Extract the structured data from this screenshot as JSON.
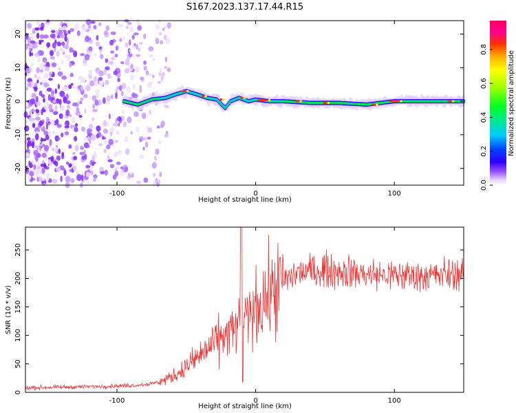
{
  "title": "S167.2023.137.17.44.R15",
  "chart_data": [
    {
      "type": "heatmap",
      "xlabel": "Height of straight line (km)",
      "ylabel": "Frequency (Hz)",
      "xlim": [
        -166,
        150
      ],
      "ylim": [
        -25,
        24
      ],
      "xticks": [
        -100,
        0,
        100
      ],
      "yticks": [
        -20,
        -10,
        0,
        10,
        20
      ],
      "colorbar": {
        "label": "Normalized spectral amplitude",
        "range": [
          0,
          0.97
        ],
        "ticks": [
          "0.0",
          "0.2",
          "0.4",
          "0.6",
          "0.8"
        ],
        "colormap": "gist_ncar",
        "colors": [
          "#ffffff",
          "#f3e9ff",
          "#d9b8ff",
          "#a060ff",
          "#6000e0",
          "#0000ff",
          "#00c0ff",
          "#00e0a0",
          "#00ff00",
          "#a0ff00",
          "#ffff00",
          "#ffa000",
          "#ff2000",
          "#ff00a0",
          "#ff0060"
        ]
      },
      "ridge": {
        "description_free_values": true,
        "x": [
          -95,
          -85,
          -75,
          -65,
          -58,
          -50,
          -42,
          -35,
          -28,
          -22,
          -18,
          -12,
          -5,
          0,
          10,
          20,
          40,
          60,
          80,
          100,
          120,
          150
        ],
        "freq": [
          0,
          -1,
          0.5,
          1,
          2,
          3,
          2,
          1,
          0.5,
          -2,
          0,
          1,
          0,
          0.5,
          0,
          0,
          -0.5,
          -0.5,
          -1,
          0,
          0,
          0
        ]
      },
      "noise_region_x": [
        -166,
        -70
      ]
    },
    {
      "type": "line",
      "xlabel": "Height of straight line (km)",
      "ylabel": "SNR (10 * v/v)",
      "xlim": [
        -166,
        150
      ],
      "ylim": [
        0,
        290
      ],
      "xticks": [
        -100,
        0,
        100
      ],
      "yticks": [
        0,
        50,
        100,
        150,
        200,
        250
      ],
      "color": "#ee3333",
      "trend": {
        "x": [
          -166,
          -120,
          -90,
          -75,
          -65,
          -55,
          -45,
          -35,
          -25,
          -15,
          -10,
          -5,
          0,
          10,
          20,
          30,
          50,
          70,
          90,
          110,
          130,
          150
        ],
        "y": [
          8,
          10,
          12,
          15,
          22,
          35,
          55,
          75,
          95,
          110,
          120,
          130,
          150,
          170,
          195,
          210,
          215,
          210,
          205,
          205,
          205,
          210
        ]
      },
      "spike": {
        "x": -10.5,
        "y": 290
      }
    }
  ]
}
